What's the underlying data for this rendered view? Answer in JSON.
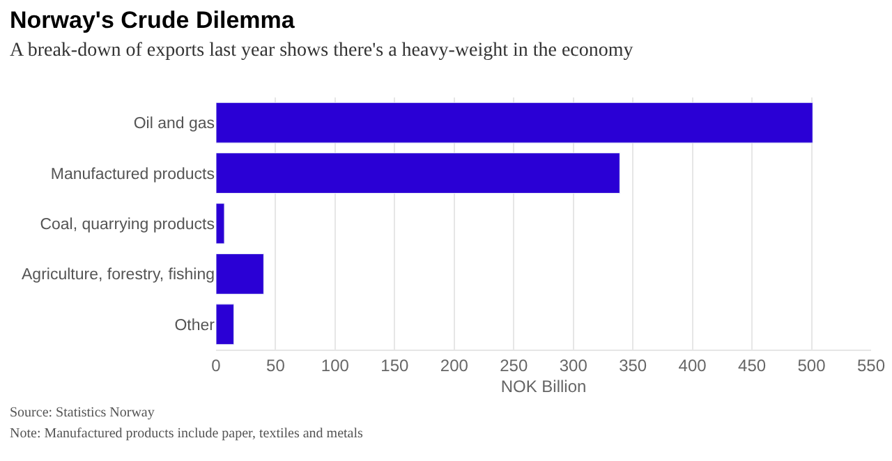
{
  "chart_data": {
    "type": "bar",
    "orientation": "horizontal",
    "title": "Norway's Crude Dilemma",
    "subtitle": "A break-down of exports last year shows there's a heavy-weight in the economy",
    "categories": [
      "Oil and gas",
      "Manufactured products",
      "Coal, quarrying products",
      "Agriculture, forestry, fishing",
      "Other"
    ],
    "values": [
      501,
      339,
      7,
      40,
      15
    ],
    "color": "#2a00d5",
    "xlabel": "NOK Billion",
    "xlim": [
      0,
      550
    ],
    "xticks": [
      0,
      50,
      100,
      150,
      200,
      250,
      300,
      350,
      400,
      450,
      500,
      550
    ],
    "grid": "x",
    "annotations": [
      "Source: Statistics Norway",
      "Note: Manufactured products include paper, textiles and metals"
    ]
  }
}
